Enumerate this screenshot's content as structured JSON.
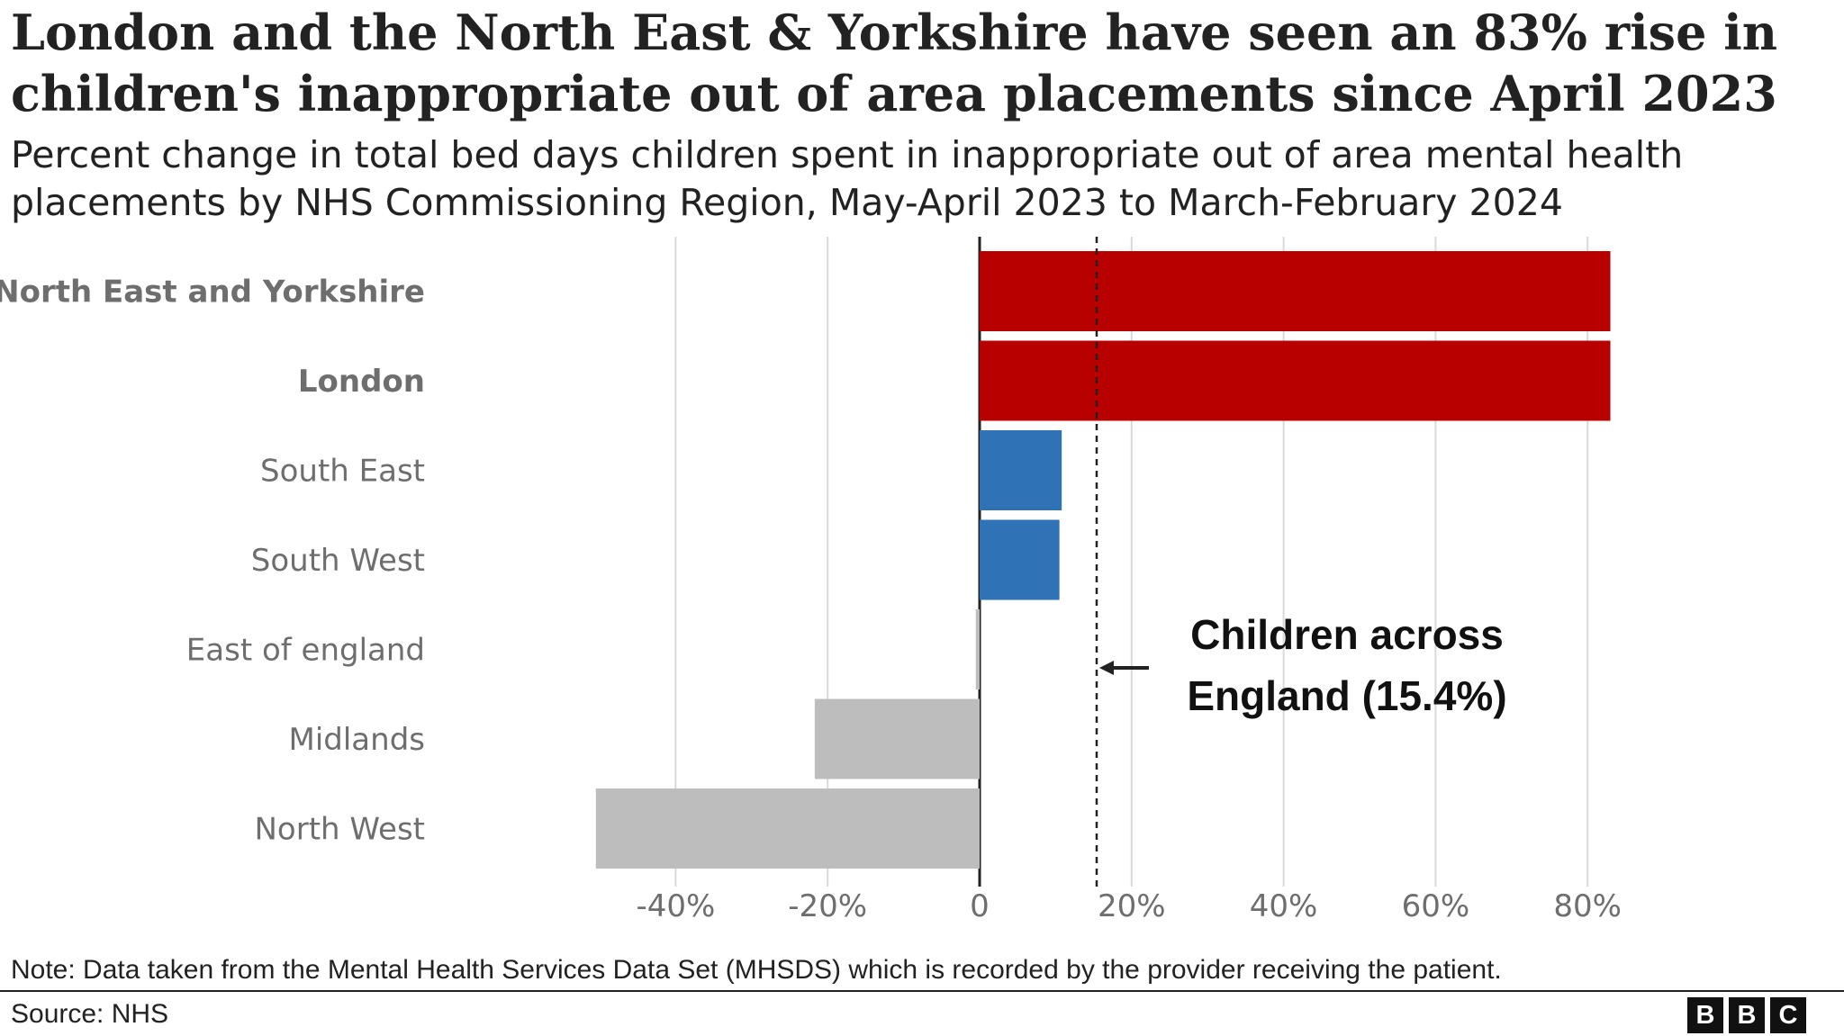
{
  "title": "London and the North East & Yorkshire have seen an 83% rise in children's inappropriate out of area placements since April 2023",
  "subtitle": "Percent change in total bed days children spent in inappropriate out of area mental health placements by NHS Commissioning Region, May-April 2023 to March-February 2024",
  "note": "Note: Data taken from the Mental Health Services Data Set (MHSDS) which is recorded by the provider receiving the patient.",
  "source": "Source: NHS",
  "logo_letters": [
    "B",
    "B",
    "C"
  ],
  "colors": {
    "highlight": "#b80000",
    "blue": "#3072b6",
    "grey": "#bdbdbd",
    "label_default": "#6e6e6e",
    "grid": "#d9d9d9",
    "axis": "#222222"
  },
  "chart_data": {
    "type": "bar",
    "orientation": "horizontal",
    "categories": [
      "North East and Yorkshire",
      "London",
      "South East",
      "South West",
      "East of england",
      "Midlands",
      "North West"
    ],
    "values": [
      83,
      83,
      10.8,
      10.5,
      -0.5,
      -21.7,
      -50.5
    ],
    "bar_color_groups": [
      "highlight",
      "highlight",
      "blue",
      "blue",
      "grey",
      "grey",
      "grey"
    ],
    "bold_labels": [
      true,
      true,
      false,
      false,
      false,
      false,
      false
    ],
    "xlim": [
      -52,
      85
    ],
    "ticks": [
      -40,
      -20,
      0,
      20,
      40,
      60,
      80
    ],
    "tick_labels": [
      "-40%",
      "-20%",
      "0",
      "20%",
      "40%",
      "60%",
      "80%"
    ],
    "grid": true,
    "reference_line": {
      "value": 15.4,
      "style": "dashed",
      "label_lines": [
        "Children across",
        "England (15.4%)"
      ]
    }
  }
}
